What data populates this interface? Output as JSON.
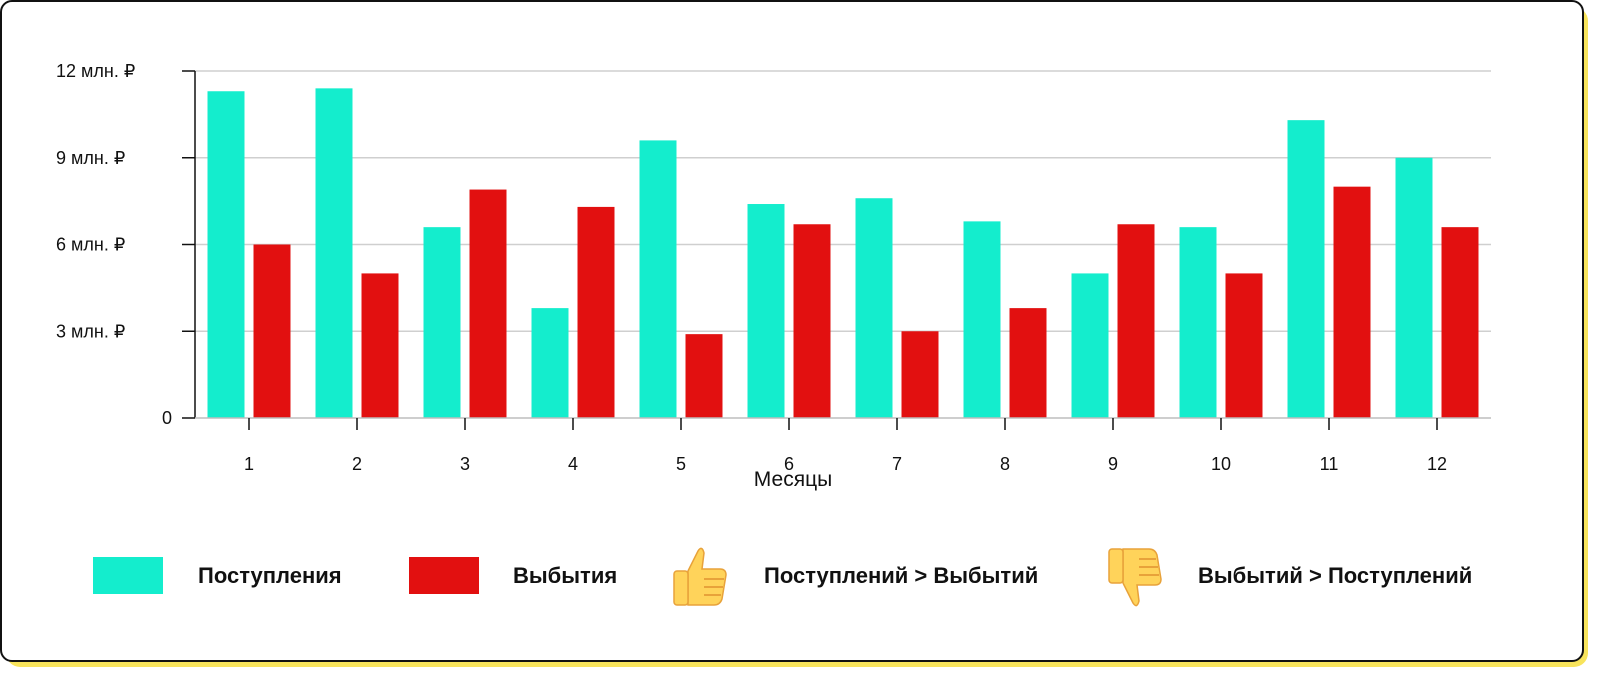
{
  "chart_data": {
    "type": "bar",
    "categories": [
      "1",
      "2",
      "3",
      "4",
      "5",
      "6",
      "7",
      "8",
      "9",
      "10",
      "11",
      "12"
    ],
    "series": [
      {
        "name": "Поступления",
        "color": "#14edcd",
        "values": [
          11.3,
          11.4,
          6.6,
          3.8,
          9.6,
          7.4,
          7.6,
          6.8,
          5.0,
          6.6,
          10.3,
          9.0
        ]
      },
      {
        "name": "Выбытия",
        "color": "#e21010",
        "values": [
          6.0,
          5.0,
          7.9,
          7.3,
          2.9,
          6.7,
          3.0,
          3.8,
          6.7,
          5.0,
          8.0,
          6.6
        ]
      }
    ],
    "xlabel": "Месяцы",
    "ylim": [
      0,
      12
    ],
    "yticks": [
      {
        "value": 0,
        "label": "0"
      },
      {
        "value": 3,
        "label": "3 млн. ₽"
      },
      {
        "value": 6,
        "label": "6 млн. ₽"
      },
      {
        "value": 9,
        "label": "9 млн. ₽"
      },
      {
        "value": 12,
        "label": "12 млн. ₽"
      }
    ],
    "grid": true,
    "legend_placement": "bottom"
  },
  "legend": {
    "items": [
      {
        "label": "Поступления",
        "kind": "swatch",
        "color": "#14edcd"
      },
      {
        "label": "Выбытия",
        "kind": "swatch",
        "color": "#e21010"
      },
      {
        "label": "Поступлений > Выбытий",
        "kind": "icon",
        "icon": "thumbs-up-icon"
      },
      {
        "label": "Выбытий > Поступлений",
        "kind": "icon",
        "icon": "thumbs-down-icon"
      }
    ]
  }
}
